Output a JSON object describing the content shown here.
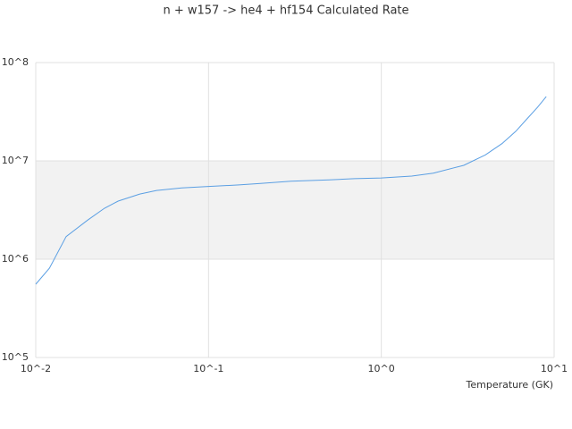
{
  "chart_data": {
    "type": "line",
    "title": "n + w157 -> he4 + hf154 Calculated Rate",
    "x_label": "Temperature (GK)",
    "x": [
      0.01,
      0.012,
      0.015,
      0.02,
      0.025,
      0.03,
      0.04,
      0.05,
      0.07,
      0.1,
      0.15,
      0.2,
      0.3,
      0.5,
      0.7,
      1,
      1.5,
      2,
      3,
      4,
      5,
      6,
      7,
      8,
      9
    ],
    "series": [
      {
        "color": "#5b9fe3",
        "values": [
          556000,
          810000,
          1700000,
          2500000,
          3300000,
          3900000,
          4600000,
          5000000,
          5300000,
          5500000,
          5700000,
          5900000,
          6200000,
          6400000,
          6600000,
          6700000,
          7000000,
          7500000,
          9000000,
          11500000,
          15000000,
          20000000,
          27000000,
          35000000,
          45000000
        ]
      }
    ],
    "xscale": "log",
    "yscale": "log",
    "xlim": [
      0.01,
      10
    ],
    "ylim": [
      100000,
      100000000
    ],
    "xticks": [
      {
        "value": 0.01,
        "label": "10^-2"
      },
      {
        "value": 0.1,
        "label": "10^-1"
      },
      {
        "value": 1,
        "label": "10^0"
      },
      {
        "value": 10,
        "label": "10^1"
      }
    ],
    "yticks": [
      {
        "value": 100000,
        "label": "10^5"
      },
      {
        "value": 1000000,
        "label": "10^6"
      },
      {
        "value": 10000000,
        "label": "10^7"
      },
      {
        "value": 100000000,
        "label": "10^8"
      }
    ],
    "grid": true
  }
}
